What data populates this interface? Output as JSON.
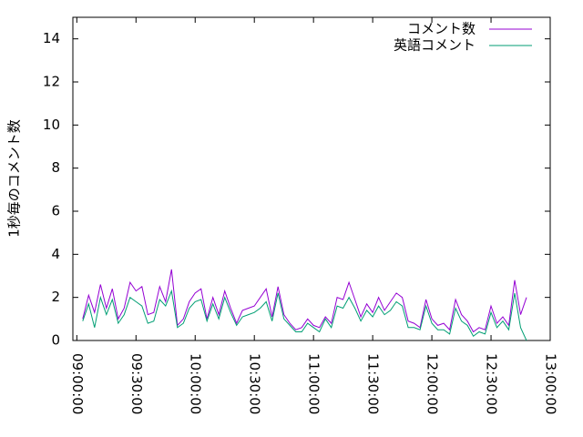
{
  "chart_data": {
    "type": "line",
    "ylabel": "1秒毎のコメント数",
    "x": [
      "09:03:00",
      "09:06:00",
      "09:09:00",
      "09:12:00",
      "09:15:00",
      "09:18:00",
      "09:21:00",
      "09:24:00",
      "09:27:00",
      "09:30:00",
      "09:33:00",
      "09:36:00",
      "09:39:00",
      "09:42:00",
      "09:45:00",
      "09:48:00",
      "09:51:00",
      "09:54:00",
      "09:57:00",
      "10:00:00",
      "10:03:00",
      "10:06:00",
      "10:09:00",
      "10:12:00",
      "10:15:00",
      "10:18:00",
      "10:21:00",
      "10:24:00",
      "10:27:00",
      "10:30:00",
      "10:33:00",
      "10:36:00",
      "10:39:00",
      "10:42:00",
      "10:45:00",
      "10:48:00",
      "10:51:00",
      "10:54:00",
      "10:57:00",
      "11:00:00",
      "11:03:00",
      "11:06:00",
      "11:09:00",
      "11:12:00",
      "11:15:00",
      "11:18:00",
      "11:21:00",
      "11:24:00",
      "11:27:00",
      "11:30:00",
      "11:33:00",
      "11:36:00",
      "11:39:00",
      "11:42:00",
      "11:45:00",
      "11:48:00",
      "11:51:00",
      "11:54:00",
      "11:57:00",
      "12:00:00",
      "12:03:00",
      "12:06:00",
      "12:09:00",
      "12:12:00",
      "12:15:00",
      "12:18:00",
      "12:21:00",
      "12:24:00",
      "12:27:00",
      "12:30:00",
      "12:33:00",
      "12:36:00",
      "12:39:00",
      "12:42:00",
      "12:45:00",
      "12:48:00"
    ],
    "series": [
      {
        "name": "コメント数",
        "color": "#9400d3",
        "values": [
          1.0,
          2.1,
          1.3,
          2.6,
          1.5,
          2.4,
          1.0,
          1.5,
          2.7,
          2.3,
          2.5,
          1.2,
          1.3,
          2.5,
          1.8,
          3.3,
          0.7,
          1.0,
          1.8,
          2.2,
          2.4,
          1.0,
          2.0,
          1.2,
          2.3,
          1.5,
          0.8,
          1.4,
          1.5,
          1.6,
          2.0,
          2.4,
          1.1,
          2.5,
          1.2,
          0.8,
          0.5,
          0.6,
          1.0,
          0.7,
          0.6,
          1.1,
          0.8,
          2.0,
          1.9,
          2.7,
          1.9,
          1.1,
          1.7,
          1.3,
          2.0,
          1.4,
          1.8,
          2.2,
          2.0,
          0.9,
          0.8,
          0.6,
          1.9,
          1.0,
          0.7,
          0.8,
          0.5,
          1.9,
          1.2,
          0.9,
          0.4,
          0.6,
          0.5,
          1.6,
          0.8,
          1.1,
          0.7,
          2.8,
          1.2,
          2.0
        ]
      },
      {
        "name": "英語コメント",
        "color": "#009e73",
        "values": [
          0.9,
          1.7,
          0.6,
          2.0,
          1.2,
          1.9,
          0.8,
          1.2,
          2.0,
          1.8,
          1.6,
          0.8,
          0.9,
          1.9,
          1.6,
          2.3,
          0.6,
          0.8,
          1.5,
          1.8,
          1.9,
          0.9,
          1.7,
          1.0,
          2.0,
          1.3,
          0.7,
          1.1,
          1.2,
          1.3,
          1.5,
          1.8,
          0.9,
          2.2,
          1.0,
          0.7,
          0.4,
          0.4,
          0.8,
          0.6,
          0.4,
          1.0,
          0.6,
          1.6,
          1.5,
          2.0,
          1.5,
          0.9,
          1.4,
          1.1,
          1.6,
          1.2,
          1.4,
          1.8,
          1.6,
          0.6,
          0.6,
          0.5,
          1.6,
          0.8,
          0.5,
          0.5,
          0.3,
          1.5,
          0.9,
          0.7,
          0.2,
          0.4,
          0.3,
          1.3,
          0.6,
          0.9,
          0.5,
          2.2,
          0.6,
          0.0
        ]
      }
    ],
    "xlim": [
      "08:58:00",
      "13:00:00"
    ],
    "xticks": [
      "09:00:00",
      "09:30:00",
      "10:00:00",
      "10:30:00",
      "11:00:00",
      "11:30:00",
      "12:00:00",
      "12:30:00",
      "13:00:00"
    ],
    "ylim": [
      0,
      15
    ],
    "yticks": [
      0,
      2,
      4,
      6,
      8,
      10,
      12,
      14
    ],
    "legend": "upper right"
  }
}
